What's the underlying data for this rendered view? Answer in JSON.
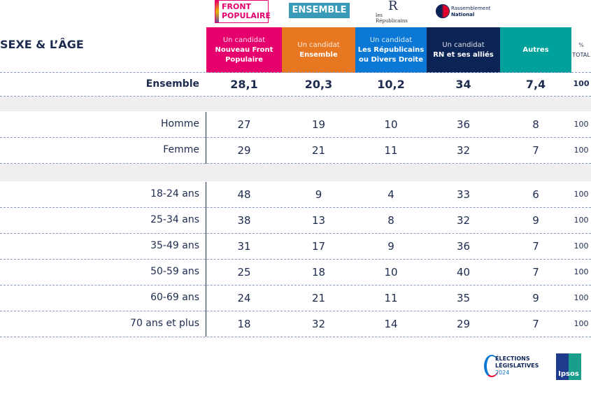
{
  "title": "SEXE & L’ÂGE",
  "logos": {
    "nfp": "FRONT POPULAIRE",
    "nfp_small": "Nouveau",
    "ensemble": "ENSEMBLE",
    "lr": "les Républicains",
    "lr_mark": "R",
    "rn1": "Rassemblement",
    "rn2": "National",
    "elections1": "ÉLECTIONS",
    "elections2": "LÉGISLATIVES",
    "elections3": "2024",
    "ipsos": "Ipsos"
  },
  "columns": [
    {
      "sub": "Un candidat",
      "main": "Nouveau Front Populaire",
      "color": "#e5006d"
    },
    {
      "sub": "Un candidat",
      "main": "Ensemble",
      "color": "#e87722"
    },
    {
      "sub": "Un candidat",
      "main": "Les Républicains ou Divers Droite",
      "color": "#0a78d4"
    },
    {
      "sub": "Un candidat",
      "main": "RN et ses alliés",
      "color": "#0c2455"
    },
    {
      "sub": "",
      "main": "Autres",
      "color": "#00a19a"
    },
    {
      "sub": "%",
      "main": "TOTAL",
      "color": "#ffffff"
    }
  ],
  "ensemble": {
    "label": "Ensemble",
    "values": [
      "28,1",
      "20,3",
      "10,2",
      "34",
      "7,4",
      "100"
    ]
  },
  "sexe": [
    {
      "label": "Homme",
      "values": [
        "27",
        "19",
        "10",
        "36",
        "8",
        "100"
      ]
    },
    {
      "label": "Femme",
      "values": [
        "29",
        "21",
        "11",
        "32",
        "7",
        "100"
      ]
    }
  ],
  "age": [
    {
      "label": "18-24 ans",
      "values": [
        "48",
        "9",
        "4",
        "33",
        "6",
        "100"
      ]
    },
    {
      "label": "25-34 ans",
      "values": [
        "38",
        "13",
        "8",
        "32",
        "9",
        "100"
      ]
    },
    {
      "label": "35-49 ans",
      "values": [
        "31",
        "17",
        "9",
        "36",
        "7",
        "100"
      ]
    },
    {
      "label": "50-59 ans",
      "values": [
        "25",
        "18",
        "10",
        "40",
        "7",
        "100"
      ]
    },
    {
      "label": "60-69 ans",
      "values": [
        "24",
        "21",
        "11",
        "35",
        "9",
        "100"
      ]
    },
    {
      "label": "70 ans et plus",
      "values": [
        "18",
        "32",
        "14",
        "29",
        "7",
        "100"
      ]
    }
  ]
}
